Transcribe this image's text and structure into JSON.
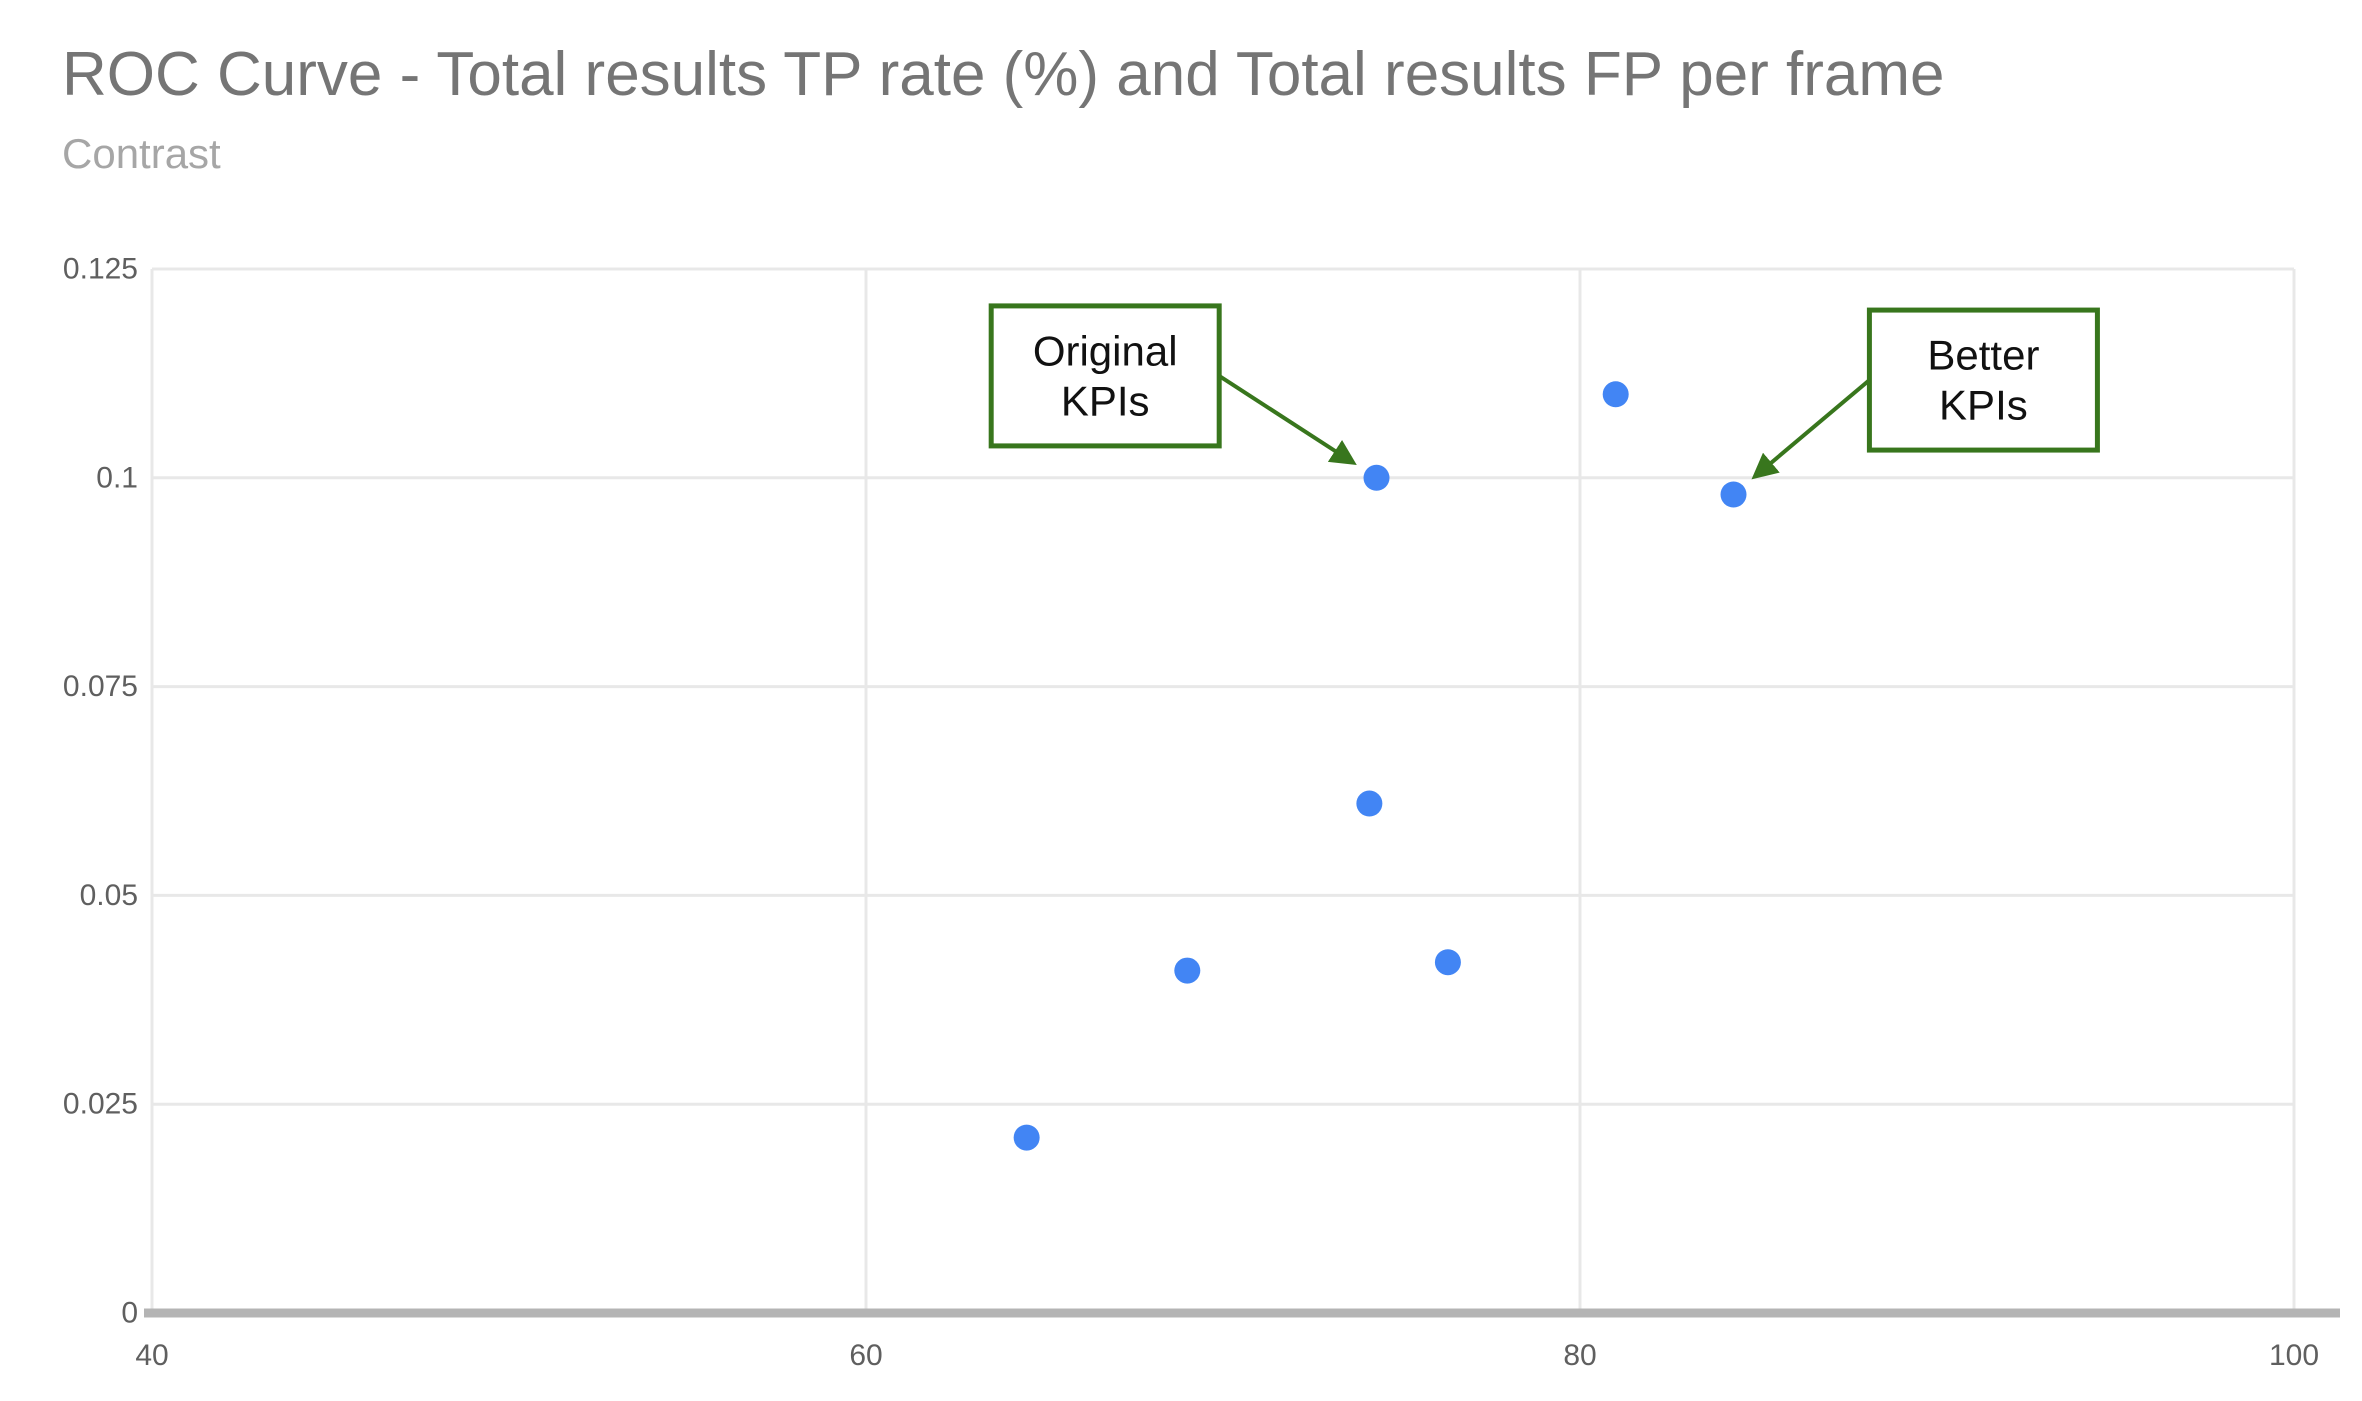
{
  "chart_data": {
    "type": "scatter",
    "title": "ROC Curve - Total results TP rate (%) and Total results FP per frame",
    "subtitle": "Contrast",
    "xlabel": "",
    "ylabel": "",
    "grid": true,
    "legend": "none",
    "x_axis": {
      "min": 40,
      "max": 100,
      "ticks": [
        40,
        60,
        80,
        100
      ],
      "labels": [
        "40",
        "60",
        "80",
        "100"
      ]
    },
    "y_axis": {
      "min": 0,
      "max": 0.125,
      "ticks": [
        0,
        0.025,
        0.05,
        0.075,
        0.1,
        0.125
      ],
      "labels": [
        "0",
        "0.025",
        "0.05",
        "0.075",
        "0.1",
        "0.125"
      ]
    },
    "series": [
      {
        "name": "Contrast",
        "color": "#4285f4",
        "points": [
          {
            "x": 64.5,
            "y": 0.021
          },
          {
            "x": 69.0,
            "y": 0.041
          },
          {
            "x": 76.3,
            "y": 0.042
          },
          {
            "x": 74.1,
            "y": 0.061
          },
          {
            "x": 74.3,
            "y": 0.1
          },
          {
            "x": 81.0,
            "y": 0.11
          },
          {
            "x": 84.3,
            "y": 0.098
          }
        ]
      }
    ],
    "annotations": [
      {
        "lines": [
          "Original",
          "KPIs"
        ],
        "box_center": {
          "x": 66.7,
          "y": 0.1122
        },
        "target": {
          "x": 74.3,
          "y": 0.1
        },
        "attach_side": "right"
      },
      {
        "lines": [
          "Better",
          "KPIs"
        ],
        "box_center": {
          "x": 91.3,
          "y": 0.1117
        },
        "target": {
          "x": 84.3,
          "y": 0.098
        },
        "attach_side": "left"
      }
    ],
    "colors": {
      "point": "#4285f4",
      "annotation_green": "#38761d",
      "annotation_text": "#111111",
      "gridline": "#e8e8e8",
      "axis_line": "#b4b4b4",
      "tick_label": "#5f5f5f",
      "title": "#757575",
      "subtitle": "#a6a6a6",
      "background": "#ffffff"
    }
  }
}
